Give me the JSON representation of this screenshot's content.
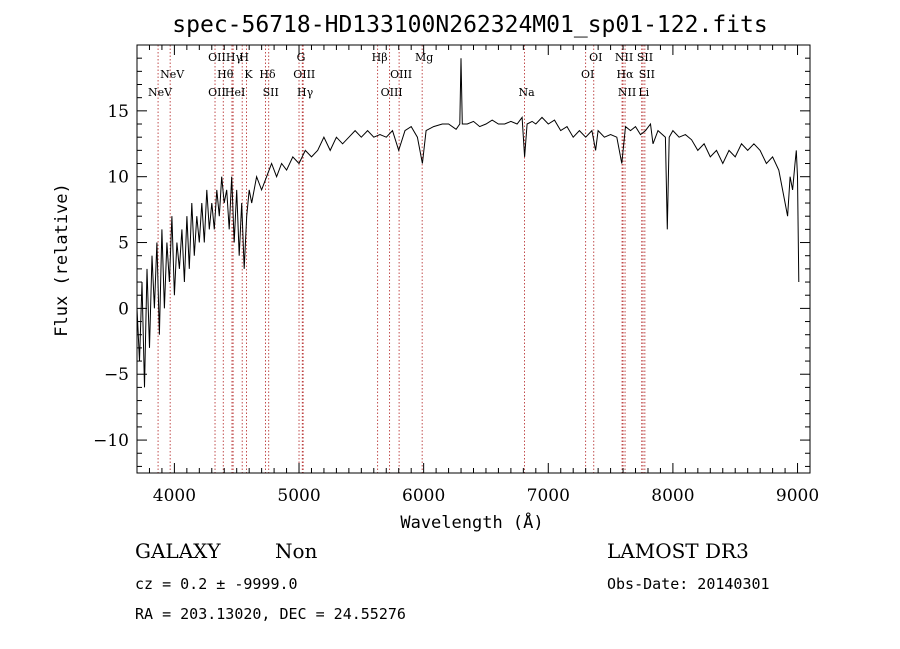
{
  "chart_data": {
    "type": "line",
    "title": "spec-56718-HD133100N262324M01_sp01-122.fits",
    "xlabel": "Wavelength (Å)",
    "ylabel": "Flux (relative)",
    "xlim": [
      3700,
      9100
    ],
    "ylim": [
      -12.5,
      20
    ],
    "xticks": [
      4000,
      5000,
      6000,
      7000,
      8000,
      9000
    ],
    "yticks": [
      -10,
      -5,
      0,
      5,
      10,
      15
    ],
    "line_color": "#000000",
    "marker_color": "#b22222",
    "spectrum": [
      [
        3700,
        0
      ],
      [
        3720,
        -4
      ],
      [
        3740,
        2
      ],
      [
        3760,
        -6
      ],
      [
        3780,
        3
      ],
      [
        3800,
        -3
      ],
      [
        3820,
        4
      ],
      [
        3840,
        0
      ],
      [
        3860,
        5
      ],
      [
        3880,
        -2
      ],
      [
        3900,
        6
      ],
      [
        3920,
        0
      ],
      [
        3940,
        5
      ],
      [
        3960,
        2
      ],
      [
        3980,
        7
      ],
      [
        4000,
        1
      ],
      [
        4020,
        5
      ],
      [
        4040,
        3
      ],
      [
        4060,
        6
      ],
      [
        4080,
        2
      ],
      [
        4100,
        7
      ],
      [
        4120,
        3
      ],
      [
        4140,
        8
      ],
      [
        4160,
        4
      ],
      [
        4180,
        7
      ],
      [
        4200,
        5
      ],
      [
        4220,
        8
      ],
      [
        4240,
        5
      ],
      [
        4260,
        9
      ],
      [
        4280,
        6
      ],
      [
        4300,
        8
      ],
      [
        4320,
        6
      ],
      [
        4340,
        9
      ],
      [
        4360,
        7
      ],
      [
        4380,
        10
      ],
      [
        4400,
        8
      ],
      [
        4420,
        9
      ],
      [
        4440,
        6
      ],
      [
        4460,
        10
      ],
      [
        4480,
        5
      ],
      [
        4500,
        9
      ],
      [
        4520,
        4
      ],
      [
        4540,
        8
      ],
      [
        4560,
        3
      ],
      [
        4580,
        7
      ],
      [
        4600,
        9
      ],
      [
        4620,
        8
      ],
      [
        4660,
        10
      ],
      [
        4700,
        9
      ],
      [
        4740,
        10
      ],
      [
        4780,
        11
      ],
      [
        4820,
        10
      ],
      [
        4860,
        11
      ],
      [
        4900,
        10.5
      ],
      [
        4950,
        11.5
      ],
      [
        5000,
        11
      ],
      [
        5050,
        12
      ],
      [
        5100,
        11.5
      ],
      [
        5150,
        12
      ],
      [
        5200,
        13
      ],
      [
        5250,
        12
      ],
      [
        5300,
        13
      ],
      [
        5350,
        12.5
      ],
      [
        5400,
        13
      ],
      [
        5450,
        13.5
      ],
      [
        5500,
        13
      ],
      [
        5550,
        13.5
      ],
      [
        5600,
        13
      ],
      [
        5650,
        13.2
      ],
      [
        5700,
        13
      ],
      [
        5750,
        13.5
      ],
      [
        5800,
        12
      ],
      [
        5850,
        13.5
      ],
      [
        5900,
        13.8
      ],
      [
        5950,
        13
      ],
      [
        5990,
        11
      ],
      [
        6020,
        13.5
      ],
      [
        6080,
        13.8
      ],
      [
        6150,
        14
      ],
      [
        6200,
        14
      ],
      [
        6260,
        13.6
      ],
      [
        6290,
        14
      ],
      [
        6300,
        19
      ],
      [
        6310,
        14
      ],
      [
        6350,
        14
      ],
      [
        6400,
        14.2
      ],
      [
        6450,
        13.8
      ],
      [
        6500,
        14
      ],
      [
        6550,
        14.3
      ],
      [
        6600,
        14
      ],
      [
        6650,
        14
      ],
      [
        6700,
        14.2
      ],
      [
        6750,
        14
      ],
      [
        6790,
        14.5
      ],
      [
        6810,
        11.5
      ],
      [
        6830,
        14
      ],
      [
        6870,
        14.2
      ],
      [
        6900,
        14
      ],
      [
        6950,
        14.5
      ],
      [
        7000,
        14
      ],
      [
        7050,
        14.3
      ],
      [
        7100,
        13.5
      ],
      [
        7150,
        13.8
      ],
      [
        7200,
        13
      ],
      [
        7250,
        13.5
      ],
      [
        7300,
        13
      ],
      [
        7350,
        13.5
      ],
      [
        7380,
        12
      ],
      [
        7400,
        13.5
      ],
      [
        7450,
        13
      ],
      [
        7500,
        13.2
      ],
      [
        7550,
        13
      ],
      [
        7590,
        11
      ],
      [
        7620,
        13.8
      ],
      [
        7660,
        13.5
      ],
      [
        7700,
        13.8
      ],
      [
        7740,
        13.2
      ],
      [
        7780,
        13.5
      ],
      [
        7820,
        14
      ],
      [
        7840,
        12.5
      ],
      [
        7880,
        13.5
      ],
      [
        7940,
        13
      ],
      [
        7955,
        6
      ],
      [
        7970,
        13
      ],
      [
        8000,
        13.5
      ],
      [
        8050,
        13
      ],
      [
        8100,
        13.2
      ],
      [
        8150,
        12.8
      ],
      [
        8200,
        12
      ],
      [
        8250,
        12.5
      ],
      [
        8300,
        11.5
      ],
      [
        8350,
        12
      ],
      [
        8400,
        11
      ],
      [
        8450,
        12
      ],
      [
        8500,
        11.5
      ],
      [
        8550,
        12.5
      ],
      [
        8600,
        12
      ],
      [
        8650,
        12.5
      ],
      [
        8700,
        12
      ],
      [
        8750,
        11
      ],
      [
        8800,
        11.5
      ],
      [
        8850,
        10.5
      ],
      [
        8900,
        8
      ],
      [
        8920,
        7
      ],
      [
        8940,
        10
      ],
      [
        8960,
        9
      ],
      [
        8980,
        11
      ],
      [
        8990,
        12
      ],
      [
        9000,
        10
      ],
      [
        9010,
        2
      ]
    ],
    "lines": [
      {
        "label": "NeV",
        "wave": 3869,
        "row": 2
      },
      {
        "label": "NeV",
        "wave": 3966,
        "row": 1
      },
      {
        "label": "OII",
        "wave": 4326,
        "row": 0
      },
      {
        "label": "OII",
        "wave": 4326,
        "row": 2
      },
      {
        "label": "Hθ",
        "wave": 4392,
        "row": 1
      },
      {
        "label": "Hγ",
        "wave": 4462,
        "row": 0
      },
      {
        "label": "HeI",
        "wave": 4471,
        "row": 2
      },
      {
        "label": "H",
        "wave": 4544,
        "row": 0
      },
      {
        "label": "K",
        "wave": 4578,
        "row": 1
      },
      {
        "label": "Hδ",
        "wave": 4731,
        "row": 1
      },
      {
        "label": "SII",
        "wave": 4757,
        "row": 2
      },
      {
        "label": "G",
        "wave": 5000,
        "row": 0
      },
      {
        "label": "OIII",
        "wave": 5026,
        "row": 1
      },
      {
        "label": "Hγ",
        "wave": 5033,
        "row": 2
      },
      {
        "label": "Hβ",
        "wave": 5631,
        "row": 0
      },
      {
        "label": "OIII",
        "wave": 5803,
        "row": 1
      },
      {
        "label": "OIII",
        "wave": 5727,
        "row": 2
      },
      {
        "label": "Mg",
        "wave": 5988,
        "row": 0
      },
      {
        "label": "Na",
        "wave": 6810,
        "row": 2
      },
      {
        "label": "OI",
        "wave": 7365,
        "row": 0
      },
      {
        "label": "OI",
        "wave": 7300,
        "row": 1
      },
      {
        "label": "NII",
        "wave": 7592,
        "row": 0
      },
      {
        "label": "Hα",
        "wave": 7600,
        "row": 1
      },
      {
        "label": "NII",
        "wave": 7616,
        "row": 2
      },
      {
        "label": "SII",
        "wave": 7760,
        "row": 0
      },
      {
        "label": "SII",
        "wave": 7775,
        "row": 1
      },
      {
        "label": "Li",
        "wave": 7750,
        "row": 2
      }
    ]
  },
  "info": {
    "class": "GALAXY",
    "subclass": "Non",
    "cz": "cz = 0.2 ± -9999.0",
    "radec": "RA = 203.13020, DEC =  24.55276",
    "survey": "LAMOST DR3",
    "obsdate": "Obs-Date: 20140301"
  }
}
